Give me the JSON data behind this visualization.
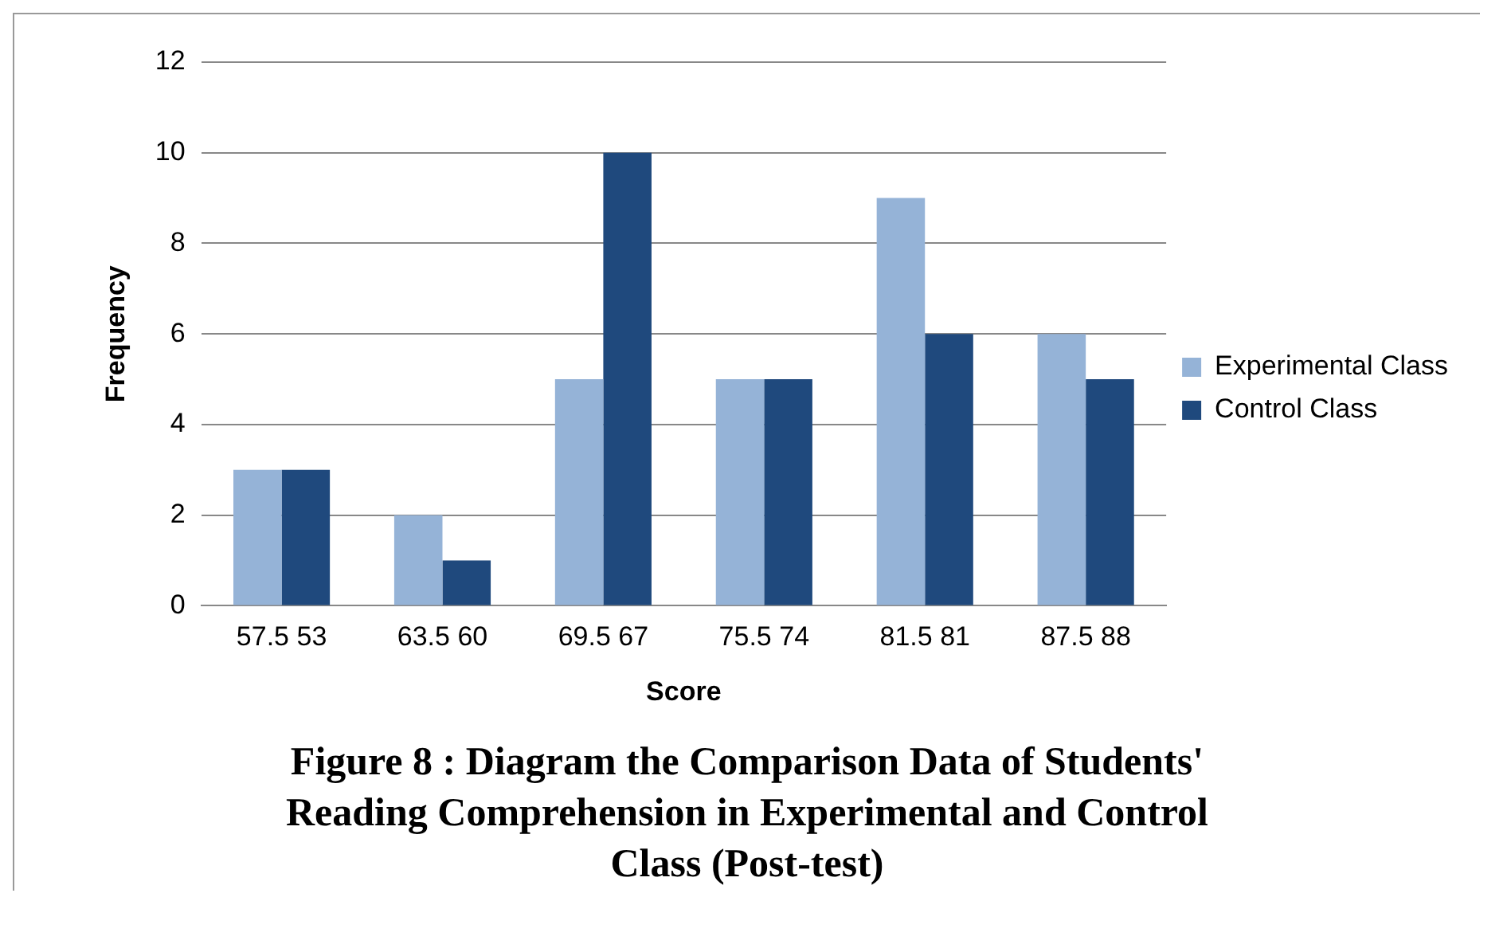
{
  "chart_data": {
    "type": "bar",
    "title": "Figure 8 : Diagram the Comparison  Data of Students' Reading Comprehension in Experimental and Control Class (Post-test)",
    "xlabel": "Score",
    "ylabel": "Frequency",
    "categories": [
      "57.5 53",
      "63.5 60",
      "69.5 67",
      "75.5 74",
      "81.5 81",
      "87.5 88"
    ],
    "series": [
      {
        "name": "Experimental Class",
        "color": "#95b3d7",
        "values": [
          3,
          2,
          5,
          5,
          9,
          6
        ]
      },
      {
        "name": "Control Class",
        "color": "#1f497d",
        "values": [
          3,
          1,
          10,
          5,
          6,
          5
        ]
      }
    ],
    "ylim": [
      0,
      12
    ],
    "yticks": [
      0,
      2,
      4,
      6,
      8,
      10,
      12
    ],
    "grid": "y",
    "legend": "right"
  }
}
